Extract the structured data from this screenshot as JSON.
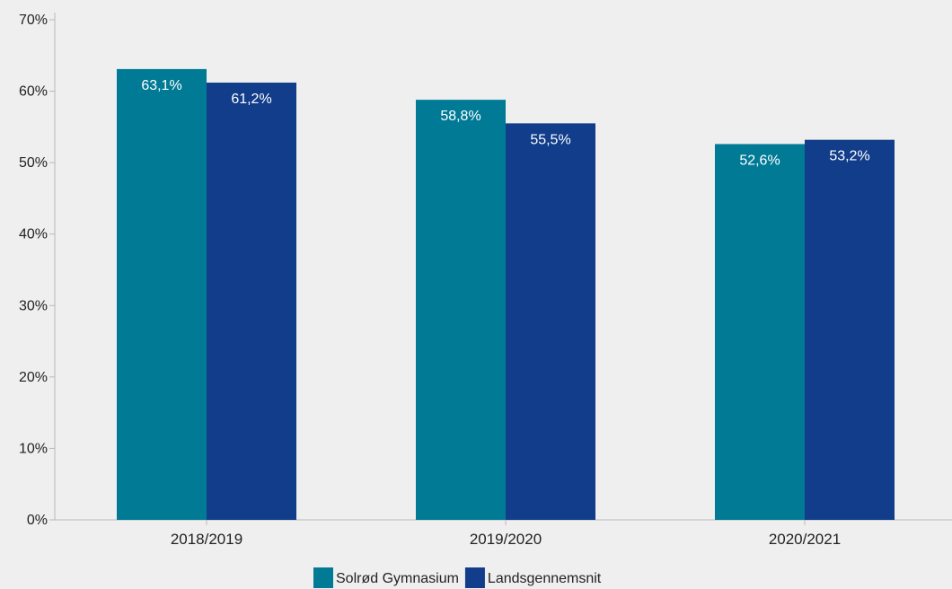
{
  "chart_data": {
    "type": "bar",
    "categories": [
      "2018/2019",
      "2019/2020",
      "2020/2021"
    ],
    "series": [
      {
        "name": "Solrød Gymnasium",
        "values": [
          63.1,
          58.8,
          52.6
        ],
        "labels": [
          "63,1%",
          "58,8%",
          "52,6%"
        ],
        "color": "#017a96"
      },
      {
        "name": "Landsgennemsnit",
        "values": [
          61.2,
          55.5,
          53.2
        ],
        "labels": [
          "61,2%",
          "55,5%",
          "53,2%"
        ],
        "color": "#113d8a"
      }
    ],
    "ylim": [
      0,
      70
    ],
    "yticks": [
      {
        "value": 0,
        "label": "0%"
      },
      {
        "value": 10,
        "label": "10%"
      },
      {
        "value": 20,
        "label": "20%"
      },
      {
        "value": 30,
        "label": "30%"
      },
      {
        "value": 40,
        "label": "40%"
      },
      {
        "value": 50,
        "label": "50%"
      },
      {
        "value": 60,
        "label": "60%"
      },
      {
        "value": 70,
        "label": "70%"
      }
    ],
    "title": "",
    "xlabel": "",
    "ylabel": "",
    "grid": false,
    "legend_position": "bottom-center",
    "plot_background": "#efefef"
  }
}
